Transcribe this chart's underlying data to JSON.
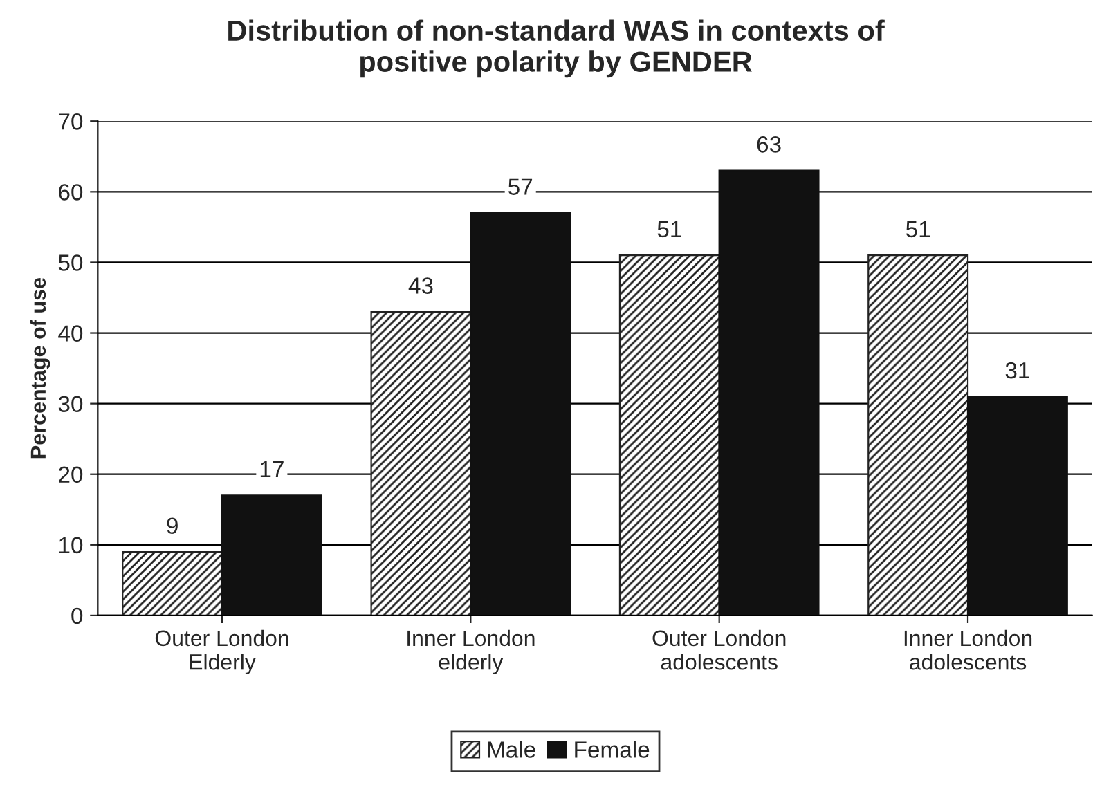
{
  "chart_data": {
    "type": "bar",
    "title": "Distribution of non-standard WAS in contexts of\npositive polarity by GENDER",
    "categories": [
      "Outer London\nElderly",
      "Inner London\nelderly",
      "Outer London\nadolescents",
      "Inner London\nadolescents"
    ],
    "series": [
      {
        "name": "Male",
        "color": "#222222",
        "values": [
          9,
          43,
          51,
          51
        ]
      },
      {
        "name": "Female",
        "color": "#111111",
        "values": [
          17,
          57,
          63,
          31
        ]
      }
    ],
    "ylabel": "Percentage of use",
    "ylim": [
      0,
      70
    ],
    "yticks": [
      0,
      10,
      20,
      30,
      40,
      50,
      60,
      70
    ],
    "grid": "y",
    "legend": "bottom",
    "data_labels": true
  }
}
